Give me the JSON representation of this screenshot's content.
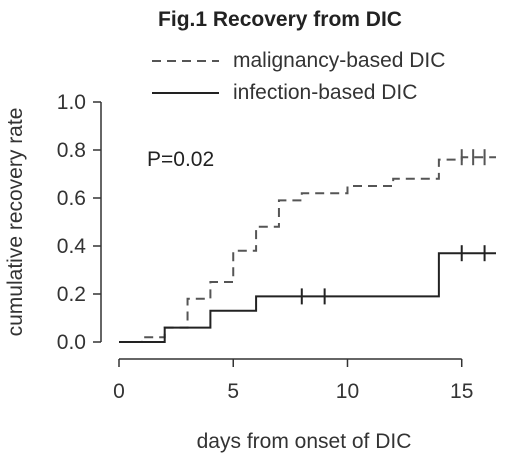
{
  "chart_data": {
    "type": "line",
    "title": "Fig.1 Recovery from DIC",
    "xlabel": "days from onset of DIC",
    "ylabel": "cumulative recovery rate",
    "xlim": [
      0,
      16.5
    ],
    "ylim": [
      0,
      1.0
    ],
    "x_ticks": [
      "0",
      "5",
      "10",
      "15"
    ],
    "y_ticks": [
      "0.0",
      "0.2",
      "0.4",
      "0.6",
      "0.8",
      "1.0"
    ],
    "grid": false,
    "legend_position": "top-right",
    "annotation": "P=0.02",
    "series": [
      {
        "name": "malignancy-based DIC",
        "style": "dashed",
        "color": "#555555",
        "x": [
          0,
          1,
          2,
          3,
          3.5,
          4,
          5,
          5.5,
          6,
          7,
          8,
          10,
          12,
          14,
          15,
          16.5
        ],
        "y": [
          0.0,
          0.02,
          0.06,
          0.18,
          0.18,
          0.25,
          0.38,
          0.38,
          0.48,
          0.59,
          0.62,
          0.65,
          0.68,
          0.76,
          0.77,
          0.77
        ],
        "censored_x": [
          15,
          15.5,
          16
        ]
      },
      {
        "name": "infection-based DIC",
        "style": "solid",
        "color": "#222222",
        "x": [
          0,
          2,
          4,
          6,
          14,
          16.5
        ],
        "y": [
          0.0,
          0.06,
          0.13,
          0.19,
          0.37,
          0.37
        ],
        "censored_x": [
          8,
          9,
          15,
          16
        ]
      }
    ]
  }
}
